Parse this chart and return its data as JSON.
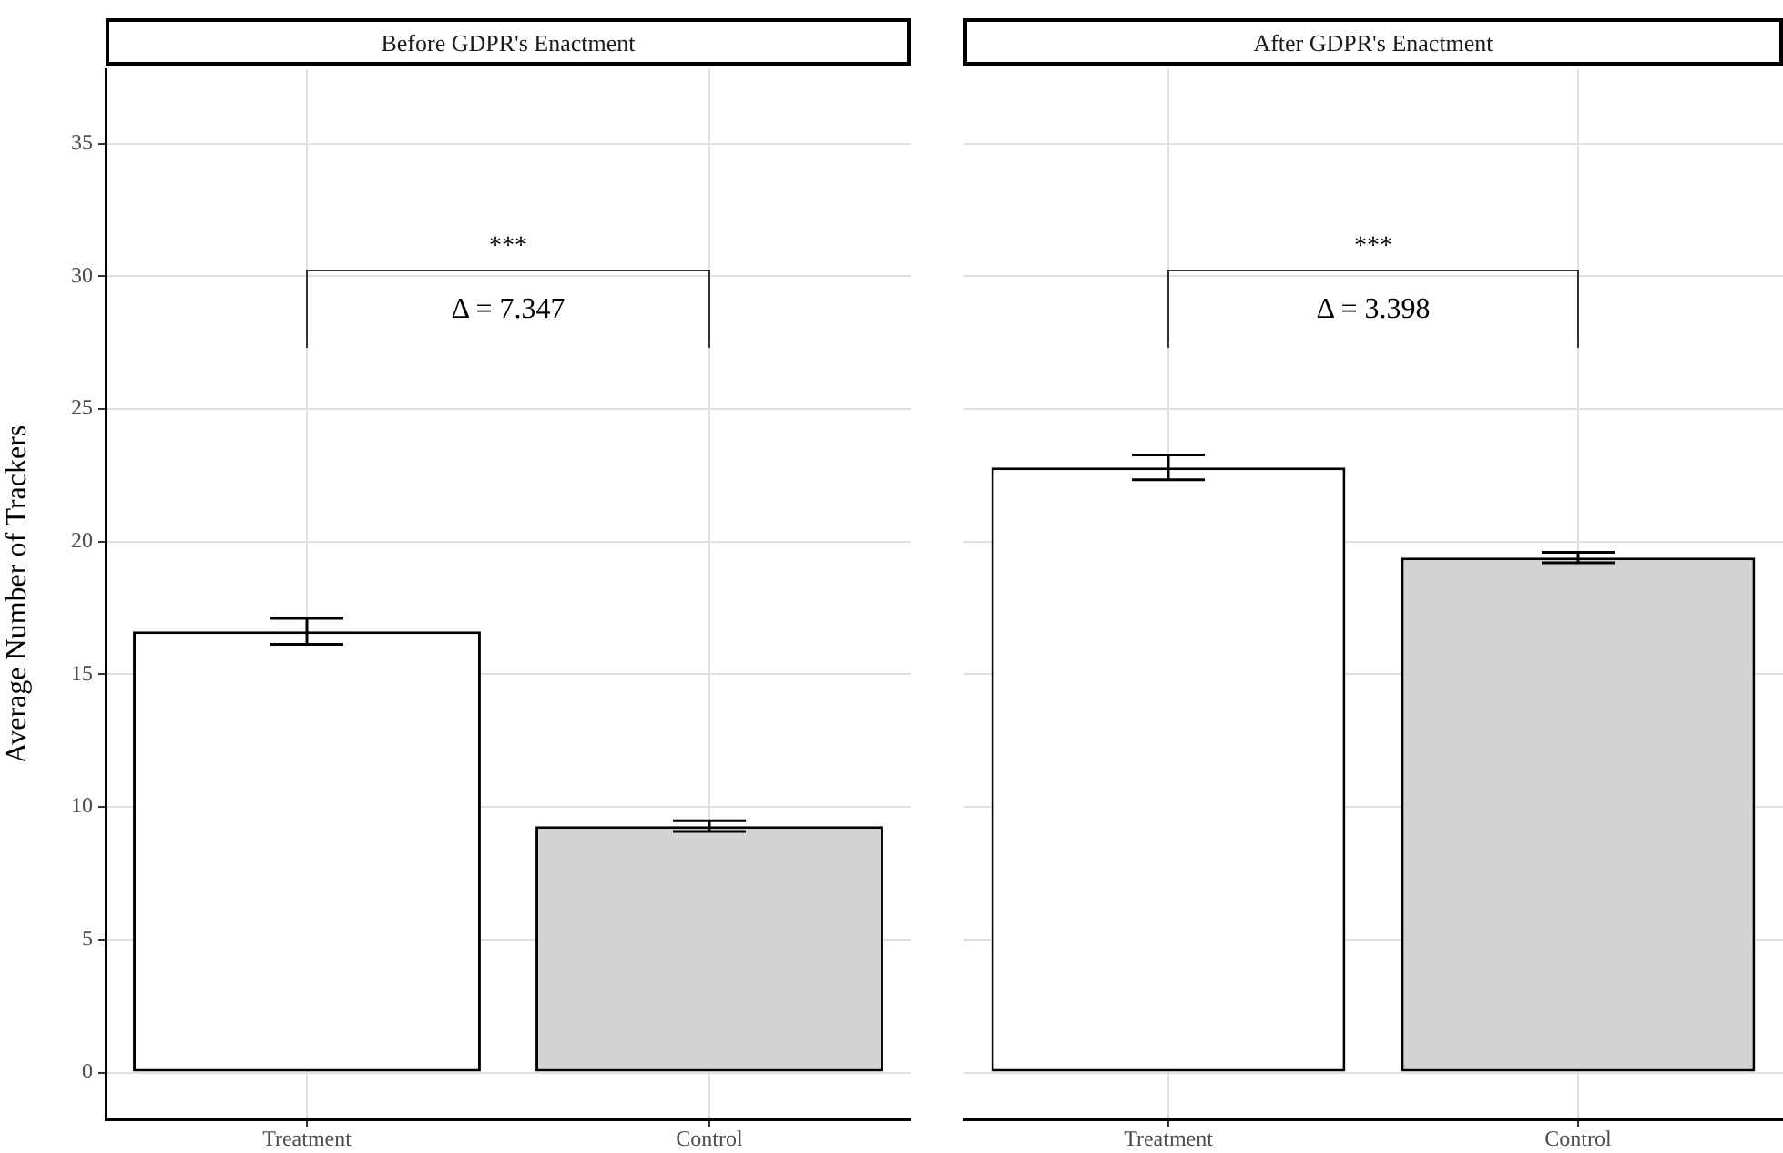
{
  "chart_data": [
    {
      "type": "bar",
      "title": "Before GDPR's Enactment",
      "ylabel": "Average Number of Trackers",
      "categories": [
        "Treatment",
        "Control"
      ],
      "values": [
        16.62,
        9.28
      ],
      "errors": [
        0.49,
        0.2
      ],
      "colors": [
        "#ffffff",
        "#d3d3d3"
      ],
      "ylim": [
        -1.77,
        37.8
      ],
      "yticks": [
        0,
        5,
        10,
        15,
        20,
        25,
        30,
        35
      ],
      "grid": true,
      "annotations": [
        "***",
        "Δ = 7.347"
      ]
    },
    {
      "type": "bar",
      "title": "After GDPR's Enactment",
      "categories": [
        "Treatment",
        "Control"
      ],
      "values": [
        22.8,
        19.4
      ],
      "errors": [
        0.47,
        0.2
      ],
      "colors": [
        "#ffffff",
        "#d3d3d3"
      ],
      "ylim": [
        -1.77,
        37.8
      ],
      "yticks": [
        0,
        5,
        10,
        15,
        20,
        25,
        30,
        35
      ],
      "grid": true,
      "tick_labels": "x",
      "annotations": [
        "***",
        "Δ = 3.398"
      ]
    }
  ]
}
